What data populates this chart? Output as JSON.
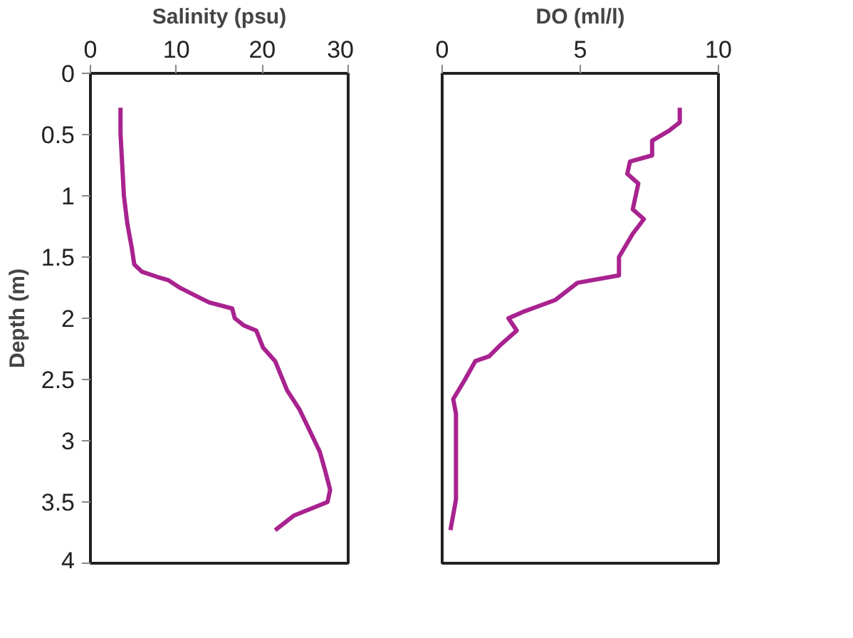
{
  "chart_data": [
    {
      "type": "line",
      "xlabel": "Salinity (psu)",
      "ylabel": "Depth (m)",
      "xlim": [
        0,
        30
      ],
      "xticks": [
        0,
        10,
        20,
        30
      ],
      "ylim": [
        4,
        0
      ],
      "yticks": [
        0,
        0.5,
        1,
        1.5,
        2,
        2.5,
        3,
        3.5,
        4
      ],
      "grid": false,
      "marker": "none",
      "line_style": "solid",
      "series": [
        {
          "color": "#a8238f",
          "x": [
            3.5,
            3.5,
            3.9,
            4.3,
            4.8,
            5.1,
            6.0,
            7.7,
            9.1,
            10.4,
            12.1,
            13.8,
            16.5,
            16.8,
            17.9,
            19.3,
            20.1,
            21.5,
            22.9,
            24.3,
            25.4,
            26.7,
            27.3,
            27.9,
            27.6,
            23.7,
            21.5
          ],
          "values": [
            0.28,
            0.49,
            1.0,
            1.23,
            1.42,
            1.56,
            1.62,
            1.66,
            1.69,
            1.75,
            1.81,
            1.87,
            1.92,
            2.0,
            2.06,
            2.1,
            2.24,
            2.35,
            2.59,
            2.74,
            2.9,
            3.09,
            3.24,
            3.4,
            3.5,
            3.61,
            3.73
          ]
        }
      ]
    },
    {
      "type": "line",
      "xlabel": "DO (ml/l)",
      "xlim": [
        0,
        10
      ],
      "xticks": [
        0,
        5,
        10
      ],
      "ylim": [
        4,
        0
      ],
      "yticks": [
        0,
        0.5,
        1,
        1.5,
        2,
        2.5,
        3,
        3.5,
        4
      ],
      "tick_labels": "x",
      "grid": false,
      "marker": "none",
      "line_style": "solid",
      "series": [
        {
          "color": "#a8238f",
          "x": [
            8.6,
            8.6,
            8.2,
            7.6,
            7.6,
            6.8,
            6.7,
            7.1,
            6.9,
            7.3,
            6.9,
            6.4,
            6.4,
            4.9,
            4.1,
            2.9,
            2.4,
            2.7,
            2.1,
            1.7,
            1.2,
            0.8,
            0.4,
            0.5,
            0.5,
            0.5,
            0.3
          ],
          "values": [
            0.28,
            0.4,
            0.47,
            0.55,
            0.67,
            0.72,
            0.82,
            0.9,
            1.11,
            1.19,
            1.31,
            1.5,
            1.65,
            1.71,
            1.85,
            1.95,
            2.0,
            2.1,
            2.22,
            2.31,
            2.35,
            2.51,
            2.66,
            2.78,
            3.09,
            3.48,
            3.73
          ]
        }
      ]
    }
  ]
}
